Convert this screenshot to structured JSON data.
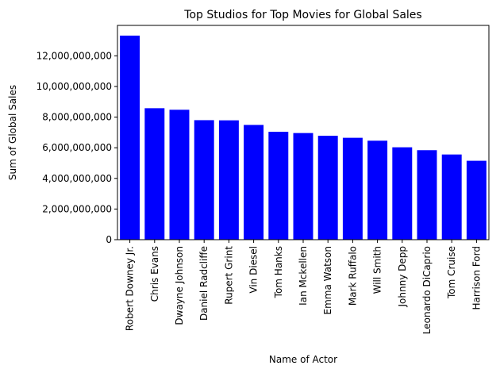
{
  "chart_data": {
    "type": "bar",
    "title": "Top Studios for Top Movies for Global Sales",
    "xlabel": "Name of Actor",
    "ylabel": "Sum of Global Sales",
    "categories": [
      "Robert Downey Jr.",
      "Chris Evans",
      "Dwayne Johnson",
      "Daniel Radcliffe",
      "Rupert Grint",
      "Vin Diesel",
      "Tom Hanks",
      "Ian Mckellen",
      "Emma Watson",
      "Mark Ruffalo",
      "Will Smith",
      "Johnny Depp",
      "Leonardo DiCaprio",
      "Tom Cruise",
      "Harrison Ford"
    ],
    "values": [
      13320000000,
      8580000000,
      8480000000,
      7800000000,
      7790000000,
      7490000000,
      7040000000,
      6960000000,
      6780000000,
      6650000000,
      6460000000,
      6030000000,
      5840000000,
      5560000000,
      5150000000
    ],
    "ylim": [
      0,
      13986000000
    ],
    "yticks": [
      0,
      2000000000,
      4000000000,
      6000000000,
      8000000000,
      10000000000,
      12000000000
    ],
    "ytick_labels": [
      "0",
      "2,000,000,000",
      "4,000,000,000",
      "6,000,000,000",
      "8,000,000,000",
      "10,000,000,000",
      "12,000,000,000"
    ],
    "bar_color": "#0000ff",
    "grid": false,
    "legend": "none"
  }
}
